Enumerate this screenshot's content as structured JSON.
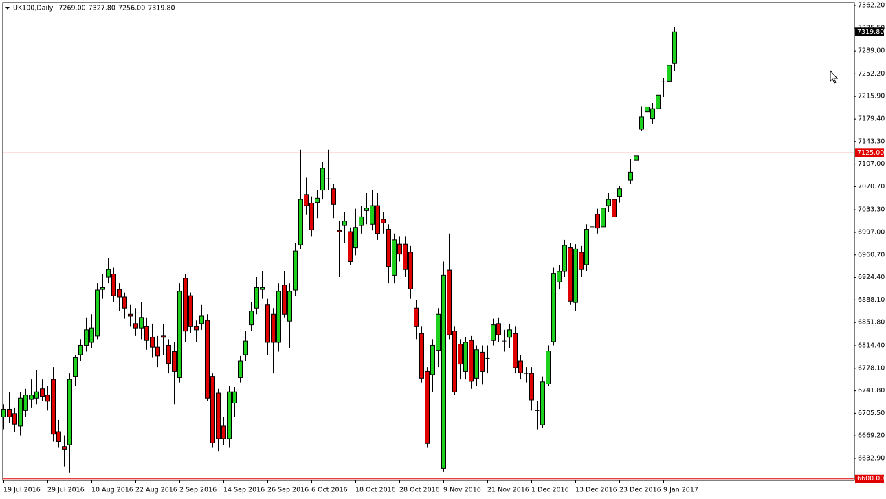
{
  "chart_data": {
    "type": "candlestick",
    "symbol": "UK100,Daily",
    "ohlc_labels": [
      "7269.00",
      "7327.80",
      "7256.00",
      "7319.80"
    ],
    "categories": [
      "19 Jul 2016",
      null,
      null,
      null,
      null,
      null,
      null,
      null,
      "29 Jul 2016",
      null,
      null,
      null,
      null,
      null,
      null,
      null,
      "10 Aug 2016",
      null,
      null,
      null,
      null,
      null,
      null,
      null,
      "22 Aug 2016",
      null,
      null,
      null,
      null,
      null,
      null,
      null,
      "2 Sep 2016",
      null,
      null,
      null,
      null,
      null,
      null,
      null,
      "14 Sep 2016",
      null,
      null,
      null,
      null,
      null,
      null,
      null,
      "26 Sep 2016",
      null,
      null,
      null,
      null,
      null,
      null,
      null,
      "6 Oct 2016",
      null,
      null,
      null,
      null,
      null,
      null,
      null,
      "18 Oct 2016",
      null,
      null,
      null,
      null,
      null,
      null,
      null,
      "28 Oct 2016",
      null,
      null,
      null,
      null,
      null,
      null,
      null,
      "9 Nov 2016",
      null,
      null,
      null,
      null,
      null,
      null,
      null,
      "21 Nov 2016",
      null,
      null,
      null,
      null,
      null,
      null,
      null,
      "1 Dec 2016",
      null,
      null,
      null,
      null,
      null,
      null,
      null,
      "13 Dec 2016",
      null,
      null,
      null,
      null,
      null,
      null,
      null,
      "23 Dec 2016",
      null,
      null,
      null,
      null,
      null,
      null,
      null,
      "9 Jan 2017",
      null,
      null
    ],
    "open": [
      6700,
      6712,
      6705,
      6685,
      6710,
      6728,
      6730,
      6745,
      6735,
      6760,
      6676,
      6652,
      6655,
      6765,
      6800,
      6815,
      6820,
      6830,
      6905,
      6925,
      6930,
      6905,
      6893,
      6865,
      6850,
      6843,
      6845,
      6828,
      6812,
      6830,
      6815,
      6805,
      6763,
      6923,
      6895,
      6845,
      6850,
      6855,
      6765,
      6738,
      6685,
      6665,
      6722,
      6763,
      6800,
      6848,
      6875,
      6905,
      6880,
      6865,
      6820,
      6912,
      6854,
      6904,
      6977,
      7058,
      7044,
      7045,
      7065,
      7082,
      7067,
      7000,
      7008,
      6998,
      6972,
      7008,
      7032,
      7010,
      7040,
      7018,
      7002,
      6928,
      6978,
      6978,
      6965,
      6875,
      6834,
      6773,
      6768,
      6807,
      6617,
      6936,
      6838,
      6817,
      6773,
      6823,
      6762,
      6804,
      6795,
      6823,
      6850,
      6823,
      6828,
      6834,
      6790,
      6771,
      6770,
      6710,
      6687,
      6753,
      6821,
      6917,
      6934,
      6972,
      6884,
      6965,
      6945,
      7005,
      7026,
      7006,
      7040,
      7050,
      7055,
      7074,
      7081,
      7113,
      7163,
      7191,
      7180,
      7196,
      7238,
      7240,
      7269
    ],
    "high": [
      6720,
      6740,
      6715,
      6740,
      6745,
      6760,
      6775,
      6760,
      6750,
      6780,
      6695,
      6670,
      6770,
      6800,
      6825,
      6860,
      6865,
      6915,
      6930,
      6955,
      6940,
      6915,
      6900,
      6880,
      6875,
      6885,
      6860,
      6850,
      6830,
      6850,
      6825,
      6820,
      6915,
      6930,
      6900,
      6855,
      6880,
      6865,
      6770,
      6745,
      6700,
      6750,
      6748,
      6798,
      6838,
      6885,
      6925,
      6935,
      6890,
      6875,
      6915,
      6935,
      6915,
      6980,
      7130,
      7085,
      7055,
      7065,
      7110,
      7130,
      7075,
      7015,
      7030,
      7005,
      7035,
      7040,
      7060,
      7065,
      7060,
      7030,
      7010,
      6995,
      6990,
      6990,
      6975,
      6888,
      6845,
      6780,
      6825,
      6875,
      6950,
      6995,
      6845,
      6825,
      6828,
      6830,
      6815,
      6815,
      6815,
      6858,
      6860,
      6840,
      6850,
      6845,
      6800,
      6780,
      6780,
      6725,
      6765,
      6815,
      6940,
      6945,
      6985,
      6980,
      6978,
      6975,
      7010,
      7025,
      7035,
      7045,
      7060,
      7055,
      7072,
      7100,
      7115,
      7140,
      7200,
      7210,
      7205,
      7230,
      7245,
      7285,
      7327.8
    ],
    "low": [
      6680,
      6690,
      6675,
      6670,
      6700,
      6715,
      6720,
      6725,
      6710,
      6660,
      6650,
      6620,
      6610,
      6750,
      6790,
      6805,
      6810,
      6825,
      6890,
      6915,
      6885,
      6870,
      6858,
      6845,
      6830,
      6825,
      6808,
      6795,
      6780,
      6800,
      6770,
      6720,
      6755,
      6820,
      6835,
      6820,
      6840,
      6725,
      6650,
      6645,
      6655,
      6650,
      6700,
      6755,
      6790,
      6838,
      6865,
      6890,
      6800,
      6770,
      6805,
      6860,
      6810,
      6895,
      6970,
      7025,
      6990,
      7020,
      7050,
      7065,
      7020,
      6925,
      6980,
      6945,
      6960,
      6995,
      7010,
      7000,
      6985,
      6995,
      6915,
      6915,
      6950,
      6925,
      6890,
      6825,
      6755,
      6650,
      6740,
      6780,
      6612,
      6825,
      6735,
      6760,
      6760,
      6745,
      6750,
      6752,
      6770,
      6815,
      6820,
      6805,
      6810,
      6770,
      6760,
      6755,
      6710,
      6680,
      6682,
      6750,
      6815,
      6905,
      6925,
      6880,
      6870,
      6925,
      6935,
      6990,
      6995,
      6995,
      7030,
      7015,
      7045,
      7065,
      7075,
      7090,
      7160,
      7170,
      7172,
      7185,
      7215,
      7235,
      7256
    ],
    "close": [
      6712,
      6700,
      6688,
      6730,
      6735,
      6735,
      6740,
      6733,
      6725,
      6672,
      6660,
      6648,
      6760,
      6795,
      6815,
      6840,
      6843,
      6904,
      6908,
      6937,
      6895,
      6893,
      6875,
      6862,
      6843,
      6860,
      6823,
      6812,
      6798,
      6828,
      6786,
      6773,
      6902,
      6838,
      6845,
      6840,
      6862,
      6730,
      6658,
      6665,
      6665,
      6740,
      6740,
      6790,
      6822,
      6870,
      6908,
      6908,
      6820,
      6820,
      6902,
      6865,
      6902,
      6967,
      7050,
      7040,
      7001,
      7052,
      7100,
      7083,
      7042,
      6998,
      7015,
      6950,
      7005,
      7022,
      7036,
      7040,
      6995,
      7012,
      6942,
      6985,
      6962,
      6937,
      6906,
      6845,
      6762,
      6657,
      6815,
      6865,
      6928,
      6832,
      6740,
      6785,
      6820,
      6757,
      6808,
      6773,
      6794,
      6848,
      6832,
      6822,
      6840,
      6779,
      6771,
      6770,
      6727,
      6710,
      6756,
      6806,
      6931,
      6934,
      6976,
      6886,
      6970,
      6937,
      7002,
      7006,
      7004,
      7036,
      7050,
      7022,
      7067,
      7075,
      7094,
      7120,
      7183,
      7199,
      7196,
      7218,
      7239,
      7266,
      7319.8
    ],
    "up_color": "#1fd11f",
    "down_color": "#e00000",
    "wick_color": "#000000",
    "ylim": [
      6597.5,
      7366.6
    ],
    "yticks": [
      {
        "value": 7362.2,
        "label": "7362.20"
      },
      {
        "value": 7325.5,
        "label": "7325.50"
      },
      {
        "value": 7289.0,
        "label": "7289.00"
      },
      {
        "value": 7252.2,
        "label": "7252.20"
      },
      {
        "value": 7215.9,
        "label": "7215.90"
      },
      {
        "value": 7179.4,
        "label": "7179.40"
      },
      {
        "value": 7143.3,
        "label": "7143.30"
      },
      {
        "value": 7107.0,
        "label": "7107.00"
      },
      {
        "value": 7070.7,
        "label": "7070.70"
      },
      {
        "value": 7033.3,
        "label": "7033.30"
      },
      {
        "value": 6997.0,
        "label": "6997.00"
      },
      {
        "value": 6960.7,
        "label": "6960.70"
      },
      {
        "value": 6924.4,
        "label": "6924.40"
      },
      {
        "value": 6888.1,
        "label": "6888.10"
      },
      {
        "value": 6851.8,
        "label": "6851.80"
      },
      {
        "value": 6814.4,
        "label": "6814.40"
      },
      {
        "value": 6778.1,
        "label": "6778.10"
      },
      {
        "value": 6741.8,
        "label": "6741.80"
      },
      {
        "value": 6705.5,
        "label": "6705.50"
      },
      {
        "value": 6669.2,
        "label": "6669.20"
      },
      {
        "value": 6632.9,
        "label": "6632.90"
      }
    ],
    "hlines": [
      {
        "value": 7125,
        "label": "7125.00",
        "color": "#e00000"
      },
      {
        "value": 6600,
        "label": "6600.00",
        "color": "#e00000"
      }
    ],
    "price_line": {
      "value": 7319.8,
      "label": "7319.80",
      "color": "#000000"
    }
  }
}
